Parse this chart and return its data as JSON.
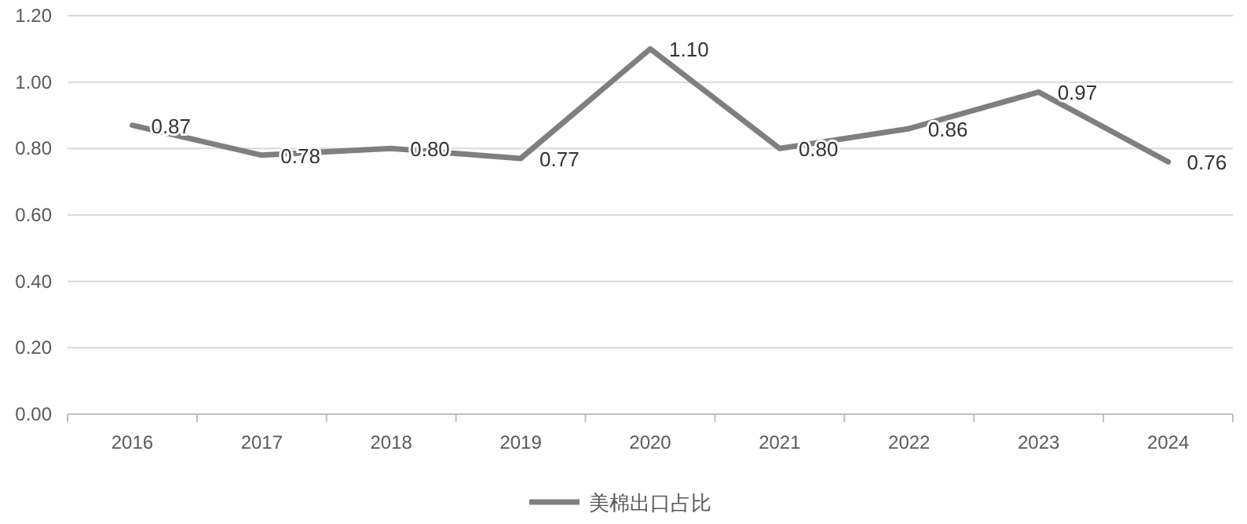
{
  "chart_data": {
    "type": "line",
    "categories": [
      "2016",
      "2017",
      "2018",
      "2019",
      "2020",
      "2021",
      "2022",
      "2023",
      "2024"
    ],
    "series": [
      {
        "name": "美棉出口占比",
        "color": "#7f7f7f",
        "values": [
          0.87,
          0.78,
          0.8,
          0.77,
          1.1,
          0.8,
          0.86,
          0.97,
          0.76
        ],
        "value_labels": [
          "0.87",
          "0.78",
          "0.80",
          "0.77",
          "1.10",
          "0.80",
          "0.86",
          "0.97",
          "0.76"
        ]
      }
    ],
    "ylim": [
      0,
      1.2
    ],
    "yticks": [
      {
        "value": 0,
        "label": "0.00"
      },
      {
        "value": 0.2,
        "label": "0.20"
      },
      {
        "value": 0.4,
        "label": "0.40"
      },
      {
        "value": 0.6,
        "label": "0.60"
      },
      {
        "value": 0.8,
        "label": "0.80"
      },
      {
        "value": 1,
        "label": "1.00"
      },
      {
        "value": 1.2,
        "label": "1.20"
      }
    ],
    "grid": "y",
    "legend": "bottom",
    "marker": "none",
    "line_style": "solid"
  }
}
